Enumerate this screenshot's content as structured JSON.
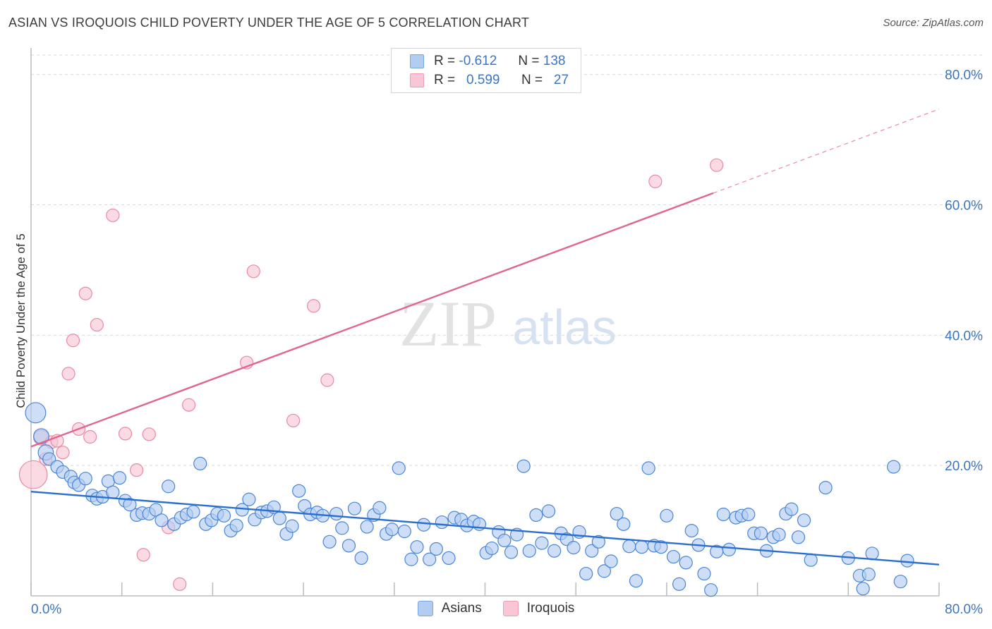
{
  "title": "ASIAN VS IROQUOIS CHILD POVERTY UNDER THE AGE OF 5 CORRELATION CHART",
  "source": "Source: ZipAtlas.com",
  "watermark": {
    "zip": "ZIP",
    "atlas": "atlas"
  },
  "legend": {
    "r_label": "R =",
    "n_label": "N =",
    "rows": [
      {
        "r": "-0.612",
        "n": "138",
        "fill": "#b3cdf2",
        "stroke": "#7aa6e0"
      },
      {
        "r": "0.599",
        "n": "27",
        "fill": "#f8c6d4",
        "stroke": "#ee9db5"
      }
    ]
  },
  "colors": {
    "asian": "#4a86d4",
    "asian_fill": "#b3cdf2",
    "asian_line": "#2a6fd0",
    "iroquois": "#e88aa6",
    "iroquois_fill": "#f8c6d4",
    "iroquois_line": "#e06690",
    "tick_text": "#3a75c4"
  },
  "chart_data": {
    "type": "scatter",
    "ylabel": "Child Poverty Under the Age of 5",
    "xlim": [
      0,
      80
    ],
    "ylim": [
      0,
      83
    ],
    "x_tick_labels": [
      "0.0%",
      "80.0%"
    ],
    "y_ticks": [
      20,
      40,
      60,
      80
    ],
    "y_tick_labels": [
      "20.0%",
      "40.0%",
      "60.0%",
      "80.0%"
    ],
    "legend_position": "bottom",
    "grid": true,
    "series": [
      {
        "name": "Asians",
        "trend": {
          "x": [
            0,
            80
          ],
          "y": [
            16.0,
            4.8
          ]
        },
        "points": [
          [
            0.4,
            28.1,
            1.6
          ],
          [
            0.9,
            24.5,
            1.2
          ],
          [
            1.3,
            22.0,
            1.2
          ],
          [
            1.6,
            21.0,
            1
          ],
          [
            2.3,
            19.8,
            1
          ],
          [
            2.8,
            19.0,
            1
          ],
          [
            3.5,
            18.3,
            1
          ],
          [
            3.8,
            17.4,
            1
          ],
          [
            4.2,
            17.0,
            1
          ],
          [
            4.8,
            18.0,
            1
          ],
          [
            5.4,
            15.4,
            1
          ],
          [
            5.8,
            14.9,
            1
          ],
          [
            6.3,
            15.2,
            1
          ],
          [
            6.8,
            17.6,
            1
          ],
          [
            7.2,
            15.9,
            1
          ],
          [
            7.8,
            18.1,
            1
          ],
          [
            8.3,
            14.6,
            1
          ],
          [
            8.7,
            14.0,
            1
          ],
          [
            9.3,
            12.4,
            1
          ],
          [
            9.8,
            12.7,
            1
          ],
          [
            10.4,
            12.6,
            1
          ],
          [
            11.0,
            13.2,
            1
          ],
          [
            11.5,
            11.6,
            1
          ],
          [
            12.1,
            16.8,
            1
          ],
          [
            12.6,
            11.0,
            1
          ],
          [
            13.2,
            12.0,
            1
          ],
          [
            13.7,
            12.5,
            1
          ],
          [
            14.3,
            12.9,
            1
          ],
          [
            14.9,
            20.3,
            1
          ],
          [
            15.4,
            11.0,
            1
          ],
          [
            15.9,
            11.6,
            1
          ],
          [
            16.4,
            12.6,
            1
          ],
          [
            17.0,
            12.3,
            1
          ],
          [
            17.6,
            10.0,
            1
          ],
          [
            18.1,
            10.8,
            1
          ],
          [
            18.6,
            13.2,
            1
          ],
          [
            19.2,
            14.8,
            1
          ],
          [
            19.7,
            11.7,
            1
          ],
          [
            20.3,
            12.8,
            1
          ],
          [
            20.8,
            13.0,
            1
          ],
          [
            21.4,
            13.6,
            1
          ],
          [
            21.9,
            11.9,
            1
          ],
          [
            22.5,
            9.5,
            1
          ],
          [
            23.0,
            10.7,
            1
          ],
          [
            23.6,
            16.1,
            1
          ],
          [
            24.1,
            13.8,
            1
          ],
          [
            24.6,
            12.5,
            1
          ],
          [
            25.2,
            12.8,
            1
          ],
          [
            25.7,
            12.3,
            1
          ],
          [
            26.3,
            8.3,
            1
          ],
          [
            26.9,
            12.6,
            1
          ],
          [
            27.4,
            10.4,
            1
          ],
          [
            28.0,
            7.7,
            1
          ],
          [
            28.5,
            13.4,
            1
          ],
          [
            29.1,
            5.8,
            1
          ],
          [
            29.6,
            10.6,
            1
          ],
          [
            30.2,
            12.4,
            1
          ],
          [
            30.7,
            13.5,
            1
          ],
          [
            31.3,
            9.5,
            1
          ],
          [
            31.8,
            10.2,
            1
          ],
          [
            32.4,
            19.6,
            1
          ],
          [
            32.9,
            9.9,
            1
          ],
          [
            33.5,
            5.6,
            1
          ],
          [
            34.0,
            7.5,
            1
          ],
          [
            34.6,
            10.9,
            1
          ],
          [
            35.1,
            5.6,
            1
          ],
          [
            35.7,
            7.2,
            1
          ],
          [
            36.2,
            11.3,
            1
          ],
          [
            36.8,
            5.8,
            1
          ],
          [
            37.3,
            12.0,
            1
          ],
          [
            37.9,
            11.7,
            1
          ],
          [
            38.4,
            10.8,
            1
          ],
          [
            39.0,
            11.4,
            1
          ],
          [
            39.5,
            11.0,
            1
          ],
          [
            40.1,
            6.6,
            1
          ],
          [
            40.6,
            7.3,
            1
          ],
          [
            41.2,
            9.8,
            1
          ],
          [
            41.7,
            8.5,
            1
          ],
          [
            42.3,
            6.7,
            1
          ],
          [
            42.8,
            9.4,
            1
          ],
          [
            43.4,
            19.9,
            1
          ],
          [
            43.9,
            6.9,
            1
          ],
          [
            44.5,
            12.4,
            1
          ],
          [
            45.0,
            8.1,
            1
          ],
          [
            45.6,
            13.0,
            1
          ],
          [
            46.1,
            6.9,
            1
          ],
          [
            46.7,
            9.6,
            1
          ],
          [
            47.2,
            8.7,
            1
          ],
          [
            47.8,
            7.4,
            1
          ],
          [
            48.3,
            9.8,
            1
          ],
          [
            48.9,
            3.4,
            1
          ],
          [
            49.4,
            6.9,
            1
          ],
          [
            50.0,
            8.3,
            1
          ],
          [
            50.5,
            3.8,
            1
          ],
          [
            51.1,
            5.3,
            1
          ],
          [
            51.6,
            12.6,
            1
          ],
          [
            52.2,
            11.0,
            1
          ],
          [
            52.7,
            7.6,
            1
          ],
          [
            53.3,
            2.3,
            1
          ],
          [
            53.8,
            7.5,
            1
          ],
          [
            54.4,
            19.6,
            1
          ],
          [
            54.9,
            7.7,
            1
          ],
          [
            55.5,
            7.5,
            1
          ],
          [
            56.0,
            12.3,
            1
          ],
          [
            56.6,
            6.0,
            1
          ],
          [
            57.1,
            1.8,
            1
          ],
          [
            57.7,
            5.1,
            1
          ],
          [
            58.2,
            10.0,
            1
          ],
          [
            58.8,
            7.8,
            1
          ],
          [
            59.3,
            3.4,
            1
          ],
          [
            59.9,
            0.9,
            1
          ],
          [
            60.4,
            6.8,
            1
          ],
          [
            61.0,
            12.5,
            1
          ],
          [
            61.5,
            7.1,
            1
          ],
          [
            62.1,
            12.0,
            1
          ],
          [
            62.6,
            12.3,
            1
          ],
          [
            63.2,
            12.5,
            1
          ],
          [
            63.7,
            9.6,
            1
          ],
          [
            64.3,
            9.6,
            1
          ],
          [
            64.8,
            6.9,
            1
          ],
          [
            65.4,
            9.0,
            1
          ],
          [
            65.9,
            9.4,
            1
          ],
          [
            66.5,
            12.6,
            1
          ],
          [
            67.0,
            13.3,
            1
          ],
          [
            67.6,
            9.0,
            1
          ],
          [
            68.1,
            11.6,
            1
          ],
          [
            68.7,
            5.5,
            1
          ],
          [
            70.0,
            16.6,
            1
          ],
          [
            72.0,
            5.8,
            1
          ],
          [
            73.0,
            3.1,
            1
          ],
          [
            73.3,
            1.1,
            1
          ],
          [
            73.8,
            3.3,
            1
          ],
          [
            74.1,
            6.5,
            1
          ],
          [
            76.0,
            19.8,
            1
          ],
          [
            76.6,
            2.2,
            1
          ],
          [
            77.2,
            5.4,
            1
          ]
        ]
      },
      {
        "name": "Iroquois",
        "trend": {
          "x": [
            0,
            60.1
          ],
          "y": [
            22.9,
            61.8
          ]
        },
        "dashed_extension": {
          "x": [
            60.1,
            80
          ],
          "y": [
            61.8,
            74.7
          ]
        },
        "points": [
          [
            0.2,
            18.6,
            2.2
          ],
          [
            0.9,
            24.3,
            1.2
          ],
          [
            1.3,
            21.0,
            1
          ],
          [
            1.8,
            23.6,
            1
          ],
          [
            2.3,
            23.8,
            1
          ],
          [
            2.8,
            22.0,
            1
          ],
          [
            3.3,
            34.1,
            1
          ],
          [
            3.7,
            39.2,
            1
          ],
          [
            4.2,
            25.6,
            1
          ],
          [
            4.8,
            46.4,
            1
          ],
          [
            5.2,
            24.4,
            1
          ],
          [
            5.8,
            41.6,
            1
          ],
          [
            7.2,
            58.4,
            1
          ],
          [
            8.3,
            24.9,
            1
          ],
          [
            9.3,
            19.3,
            1
          ],
          [
            9.9,
            6.3,
            1
          ],
          [
            10.4,
            24.8,
            1
          ],
          [
            12.1,
            10.5,
            1
          ],
          [
            13.1,
            1.8,
            1
          ],
          [
            13.9,
            29.3,
            1
          ],
          [
            19.0,
            35.8,
            1
          ],
          [
            19.6,
            49.8,
            1
          ],
          [
            23.1,
            26.9,
            1
          ],
          [
            24.9,
            44.5,
            1
          ],
          [
            26.1,
            33.1,
            1
          ],
          [
            55.0,
            63.6,
            1
          ],
          [
            60.4,
            66.1,
            1
          ]
        ]
      }
    ]
  }
}
